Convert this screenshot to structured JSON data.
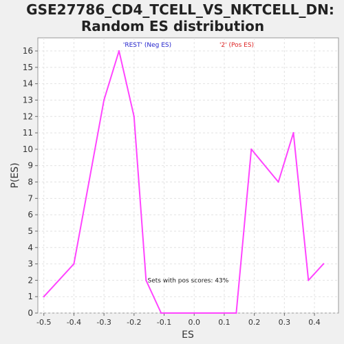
{
  "chart_data": {
    "type": "line",
    "title_lines": [
      "GSE27786_CD4_TCELL_VS_NKTCELL_DN:",
      "Random ES distribution"
    ],
    "xlabel": "ES",
    "ylabel": "P(ES)",
    "xlim": [
      -0.52,
      0.48
    ],
    "ylim": [
      0,
      16.8
    ],
    "x_ticks": [
      -0.5,
      -0.4,
      -0.3,
      -0.2,
      -0.1,
      0.0,
      0.1,
      0.2,
      0.3,
      0.4
    ],
    "x_tick_labels": [
      "-0.5",
      "-0.4",
      "-0.3",
      "-0.2",
      "-0.1",
      "0.0",
      "0.1",
      "0.2",
      "0.3",
      "0.4"
    ],
    "y_ticks": [
      0,
      1,
      2,
      3,
      4,
      5,
      6,
      7,
      8,
      9,
      10,
      11,
      12,
      13,
      14,
      15,
      16
    ],
    "grid": true,
    "series": [
      {
        "name": "P(ES)",
        "color": "#ff44ff",
        "points": [
          {
            "x": -0.5,
            "y": 1
          },
          {
            "x": -0.4,
            "y": 3
          },
          {
            "x": -0.35,
            "y": 8
          },
          {
            "x": -0.3,
            "y": 13
          },
          {
            "x": -0.25,
            "y": 16
          },
          {
            "x": -0.2,
            "y": 12
          },
          {
            "x": -0.16,
            "y": 2
          },
          {
            "x": -0.11,
            "y": 0
          },
          {
            "x": 0.14,
            "y": 0
          },
          {
            "x": 0.19,
            "y": 10
          },
          {
            "x": 0.28,
            "y": 8
          },
          {
            "x": 0.33,
            "y": 11
          },
          {
            "x": 0.38,
            "y": 2
          },
          {
            "x": 0.43,
            "y": 3
          }
        ]
      }
    ],
    "legend": [
      {
        "label": "'REST' (Neg ES)",
        "color": "#2222cc"
      },
      {
        "label": "'2' (Pos ES)",
        "color": "#dd2222"
      }
    ],
    "annotation": {
      "text": "Sets with pos scores: 43%",
      "x": -0.155,
      "y": 2
    }
  }
}
